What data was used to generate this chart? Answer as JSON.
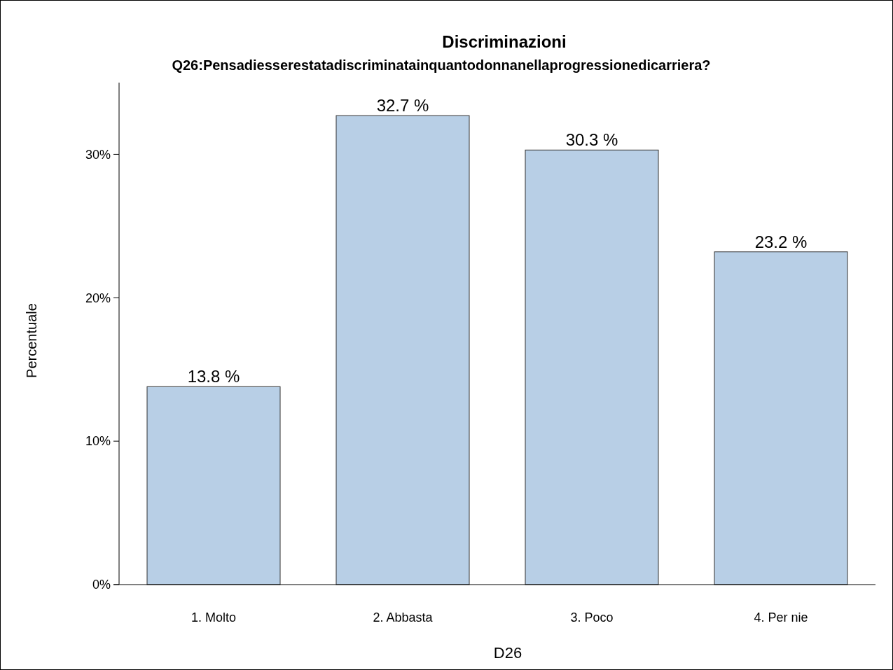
{
  "chart_data": {
    "type": "bar",
    "title": "Discriminazioni",
    "subtitle": "Q26:Pensadiesserestatadiscriminatainquantodonnanellaprogressionedicarriera?",
    "xlabel": "D26",
    "ylabel": "Percentuale",
    "categories": [
      "1. Molto",
      "2. Abbasta",
      "3. Poco",
      "4. Per nie"
    ],
    "values": [
      13.8,
      32.7,
      30.3,
      23.2
    ],
    "value_labels": [
      "13.8 %",
      "32.7 %",
      "30.3 %",
      "23.2 %"
    ],
    "color": "#b8cfe6",
    "ylim": [
      0,
      35
    ],
    "yticks": [
      {
        "value": 0,
        "label": "0%"
      },
      {
        "value": 10,
        "label": "10%"
      },
      {
        "value": 20,
        "label": "20%"
      },
      {
        "value": 30,
        "label": "30%"
      }
    ],
    "grid": false
  }
}
